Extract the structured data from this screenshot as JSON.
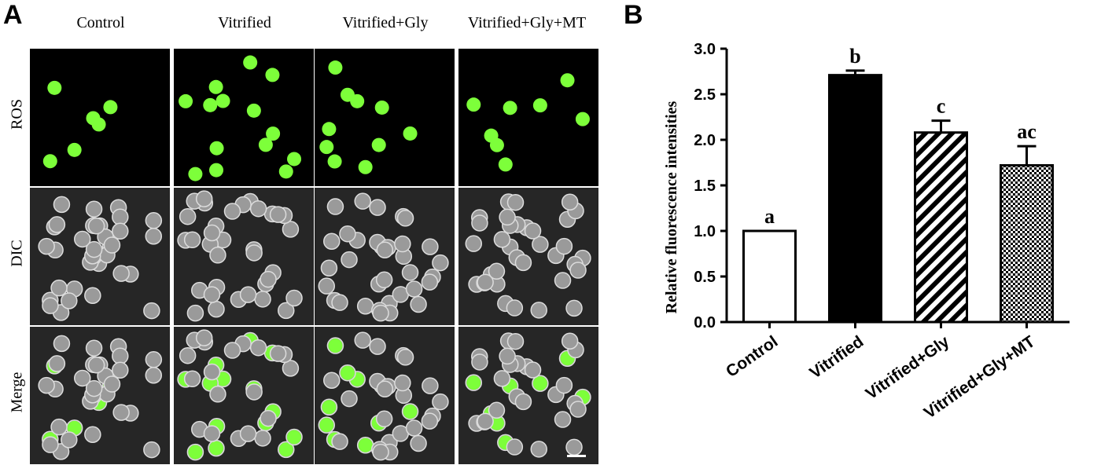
{
  "panel_a": {
    "letter": "A",
    "columns": [
      "Control",
      "Vitrified",
      "Vitrified+Gly",
      "Vitrified+Gly+MT"
    ],
    "rows": [
      "ROS",
      "DIC",
      "Merge"
    ]
  },
  "panel_b": {
    "letter": "B"
  },
  "chart_data": {
    "type": "bar",
    "categories": [
      "Control",
      "Vitrified",
      "Vitrified+Gly",
      "Vitrified+Gly+MT"
    ],
    "values": [
      1.0,
      2.71,
      2.08,
      1.72
    ],
    "errors": [
      0.0,
      0.05,
      0.13,
      0.21
    ],
    "significance_letters": [
      "a",
      "b",
      "c",
      "ac"
    ],
    "bar_fills": [
      "white",
      "black",
      "diagonal-stripes",
      "checkerboard"
    ],
    "ylabel": "Relative fluorescence intensities",
    "xlabel": "",
    "ylim": [
      0,
      3.0
    ],
    "yticks": [
      "0.0",
      "0.5",
      "1.0",
      "1.5",
      "2.0",
      "2.5",
      "3.0"
    ],
    "grid": false,
    "legend": "none"
  },
  "colors": {
    "fluorescence": "#7dff3a",
    "dic_cell": "#9a9a9a",
    "tile_bg": "#000000"
  }
}
